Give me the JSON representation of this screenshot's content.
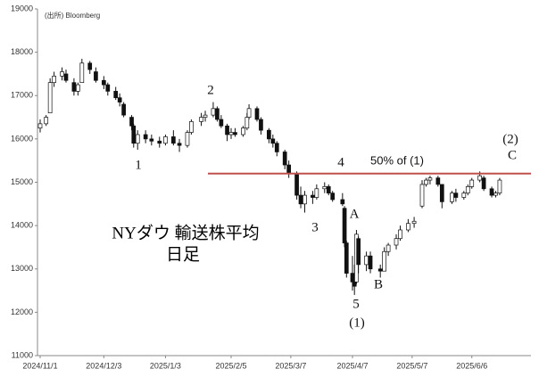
{
  "chart_data": {
    "type": "candlestick",
    "title": "NYダウ 輸送株平均",
    "subtitle": "日足",
    "source": "(出所) Bloomberg",
    "x": [
      "2024/11/1",
      "2024/11/4",
      "2024/11/6",
      "2024/11/8",
      "2024/11/12",
      "2024/11/14",
      "2024/11/18",
      "2024/11/20",
      "2024/11/22",
      "2024/11/26",
      "2024/11/29",
      "2024/12/3",
      "2024/12/5",
      "2024/12/9",
      "2024/12/11",
      "2024/12/13",
      "2024/12/17",
      "2024/12/18",
      "2024/12/20",
      "2024/12/24",
      "2024/12/27",
      "2024/12/31",
      "2025/1/3",
      "2025/1/7",
      "2025/1/10",
      "2025/1/14",
      "2025/1/16",
      "2025/1/21",
      "2025/1/23",
      "2025/1/27",
      "2025/1/29",
      "2025/1/31",
      "2025/2/3",
      "2025/2/5",
      "2025/2/7",
      "2025/2/11",
      "2025/2/13",
      "2025/2/14",
      "2025/2/18",
      "2025/2/20",
      "2025/2/24",
      "2025/2/26",
      "2025/2/28",
      "2025/3/4",
      "2025/3/6",
      "2025/3/10",
      "2025/3/12",
      "2025/3/14",
      "2025/3/18",
      "2025/3/20",
      "2025/3/24",
      "2025/3/26",
      "2025/3/28",
      "2025/4/2",
      "2025/4/3",
      "2025/4/4",
      "2025/4/7",
      "2025/4/8",
      "2025/4/9",
      "2025/4/10",
      "2025/4/14",
      "2025/4/16",
      "2025/4/21",
      "2025/4/23",
      "2025/4/25",
      "2025/4/29",
      "2025/5/1",
      "2025/5/5",
      "2025/5/8",
      "2025/5/12",
      "2025/5/14",
      "2025/5/16",
      "2025/5/20",
      "2025/5/22",
      "2025/5/27",
      "2025/5/29",
      "2025/6/2",
      "2025/6/4",
      "2025/6/6",
      "2025/6/10",
      "2025/6/12",
      "2025/6/16",
      "2025/6/18",
      "2025/6/20"
    ],
    "open": [
      16250,
      16350,
      16600,
      17300,
      17450,
      17500,
      17300,
      17100,
      17300,
      17750,
      17550,
      17350,
      17250,
      17100,
      16950,
      16800,
      16500,
      16300,
      15900,
      16100,
      16000,
      15950,
      15900,
      16050,
      15900,
      15850,
      16150,
      16400,
      16500,
      16550,
      16700,
      16450,
      16300,
      16100,
      16150,
      16100,
      16250,
      16500,
      16700,
      16450,
      16200,
      16000,
      15900,
      15700,
      15400,
      15200,
      14700,
      14500,
      14700,
      14650,
      14850,
      14900,
      14750,
      14600,
      14400,
      13600,
      12900,
      12700,
      12700,
      13700,
      13100,
      13300,
      13000,
      12950,
      13400,
      13550,
      13700,
      13900,
      14050,
      14450,
      14950,
      15050,
      15100,
      14950,
      14550,
      14750,
      14650,
      14750,
      14900,
      15050,
      15100,
      14850,
      14700,
      14750
    ],
    "high": [
      16450,
      16550,
      17400,
      17550,
      17650,
      17600,
      17400,
      17300,
      17850,
      17800,
      17650,
      17450,
      17300,
      17200,
      17050,
      16850,
      16550,
      16350,
      16200,
      16200,
      16100,
      16050,
      16100,
      16200,
      16000,
      16200,
      16450,
      16600,
      16650,
      16850,
      16750,
      16550,
      16350,
      16250,
      16250,
      16300,
      16600,
      16800,
      16750,
      16500,
      16250,
      16100,
      15950,
      15750,
      15500,
      15250,
      14900,
      14800,
      14800,
      14950,
      15000,
      14950,
      14800,
      14750,
      14450,
      13650,
      13300,
      13100,
      13900,
      13750,
      13400,
      13400,
      13100,
      13500,
      13600,
      13800,
      14000,
      14150,
      14200,
      15050,
      15100,
      15150,
      15150,
      14950,
      14800,
      14850,
      14800,
      14950,
      15100,
      15250,
      15150,
      14900,
      14800,
      15100
    ],
    "low": [
      16150,
      16300,
      16600,
      17200,
      17350,
      17300,
      17000,
      17000,
      17300,
      17500,
      17300,
      17150,
      17000,
      16900,
      16750,
      16500,
      16200,
      15800,
      15750,
      15900,
      15850,
      15800,
      15850,
      15850,
      15700,
      15800,
      16100,
      16300,
      16400,
      16500,
      16400,
      16250,
      15950,
      16000,
      16050,
      16050,
      16200,
      16450,
      16400,
      16100,
      15900,
      15800,
      15600,
      15300,
      15100,
      14600,
      14400,
      14300,
      14500,
      14600,
      14750,
      14700,
      14550,
      14450,
      13500,
      12800,
      12500,
      12400,
      12650,
      12900,
      12950,
      12900,
      12800,
      12950,
      13300,
      13450,
      13650,
      13850,
      13950,
      14400,
      14900,
      14950,
      14900,
      14400,
      14500,
      14550,
      14600,
      14700,
      14850,
      15000,
      14800,
      14650,
      14650,
      14700
    ],
    "close": [
      16350,
      16500,
      17300,
      17450,
      17550,
      17350,
      17100,
      17250,
      17750,
      17600,
      17350,
      17250,
      17100,
      16950,
      16850,
      16550,
      16300,
      15900,
      16100,
      16000,
      15950,
      15900,
      16050,
      15900,
      15850,
      16150,
      16400,
      16500,
      16550,
      16700,
      16450,
      16300,
      16100,
      16150,
      16100,
      16250,
      16500,
      16700,
      16450,
      16200,
      16000,
      15900,
      15700,
      15400,
      15200,
      14700,
      14500,
      14700,
      14650,
      14850,
      14900,
      14750,
      14600,
      14500,
      13600,
      12900,
      12700,
      12600,
      13800,
      13100,
      13300,
      13000,
      12950,
      13400,
      13550,
      13700,
      13900,
      14050,
      14100,
      14950,
      15050,
      15100,
      14950,
      14550,
      14750,
      14650,
      14750,
      14900,
      15050,
      15150,
      14850,
      14700,
      14750,
      15050
    ],
    "xlim": [
      "2024/11/1",
      "2025/6/29"
    ],
    "xticks": [
      "2024/11/1",
      "2024/12/3",
      "2025/1/3",
      "2025/2/5",
      "2025/3/7",
      "2025/4/7",
      "2025/5/7",
      "2025/6/6"
    ],
    "ylim": [
      11000,
      19000
    ],
    "yticks": [
      11000,
      12000,
      13000,
      14000,
      15000,
      16000,
      17000,
      18000,
      19000
    ],
    "reference_line": {
      "value": 15200,
      "color": "#c0504d"
    },
    "annotations": [
      "1",
      "2",
      "3",
      "4",
      "5",
      "(1)",
      "A",
      "B",
      "(2)",
      "C",
      "50% of (1)"
    ]
  }
}
